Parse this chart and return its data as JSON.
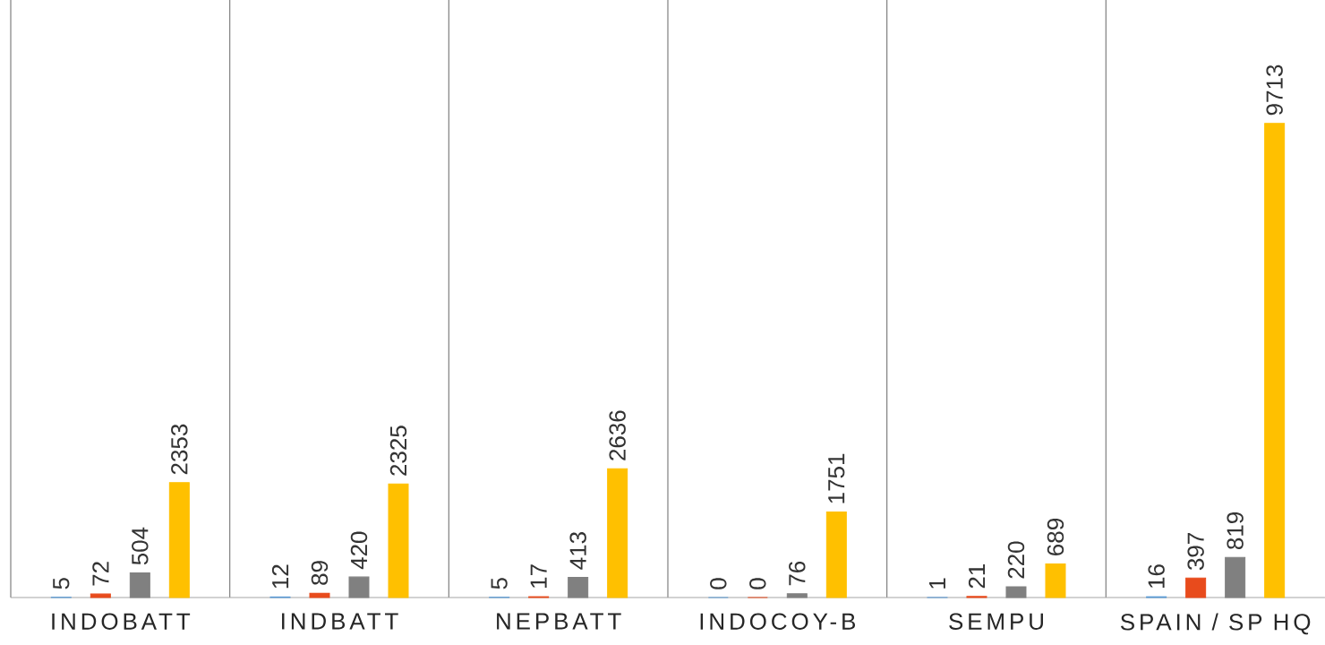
{
  "chart_data": {
    "type": "bar",
    "categories": [
      "INDOBATT",
      "INDBATT",
      "NEPBATT",
      "INDOCOY-B",
      "SEMPU",
      "SPAIN / SP HQ"
    ],
    "series": [
      {
        "color": "#5b9bd5",
        "values": [
          5,
          12,
          5,
          0,
          1,
          16
        ]
      },
      {
        "color": "#e84b1c",
        "values": [
          72,
          89,
          17,
          0,
          21,
          397
        ]
      },
      {
        "color": "#808080",
        "values": [
          504,
          420,
          413,
          76,
          220,
          819
        ]
      },
      {
        "color": "#ffc000",
        "values": [
          2353,
          2325,
          2636,
          1751,
          689,
          9713
        ]
      }
    ],
    "data_labels": true,
    "grid": "x"
  }
}
